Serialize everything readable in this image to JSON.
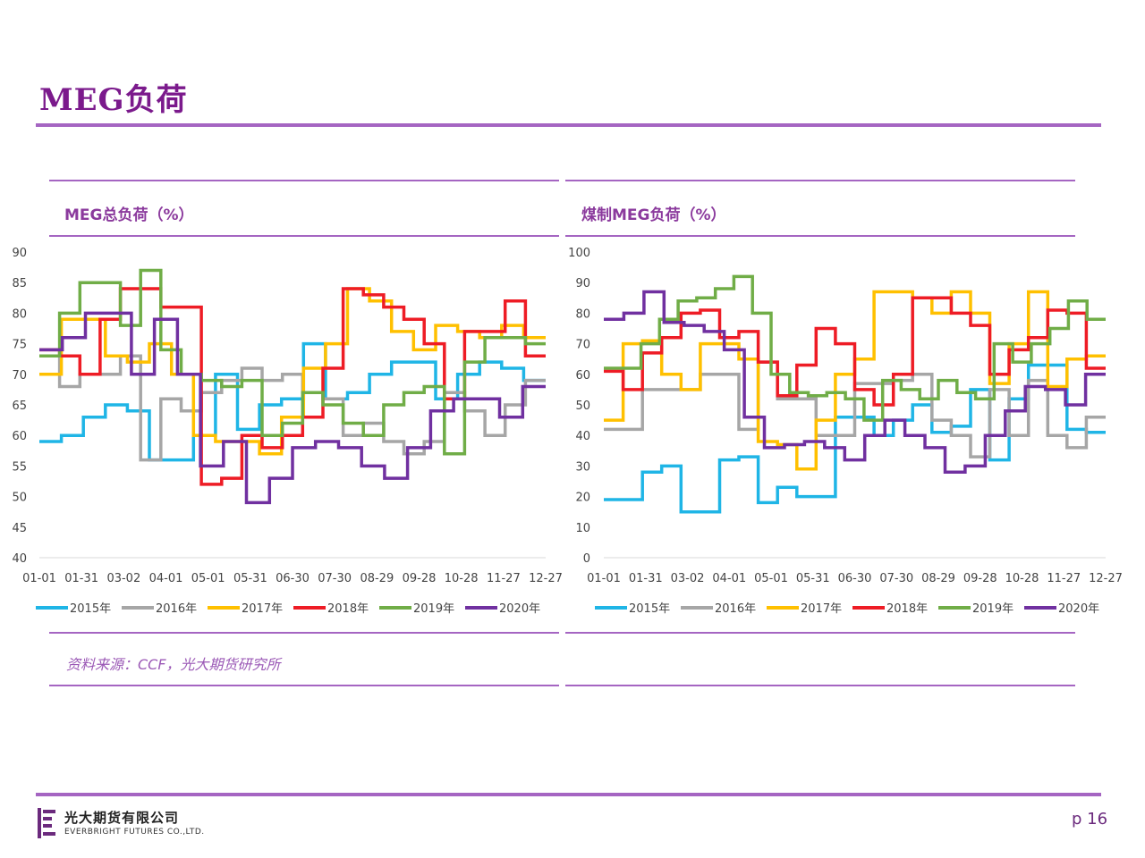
{
  "page": {
    "title": "MEG负荷",
    "source": "资料来源：CCF，光大期货研究所",
    "company_cn": "光大期货有限公司",
    "company_en": "EVERBRIGHT FUTURES CO.,LTD.",
    "page_number": "p 16",
    "accent_color": "#7b1a8c"
  },
  "chart_data": [
    {
      "type": "line",
      "title": "MEG总负荷（%）",
      "x_ticks": [
        "01-01",
        "01-31",
        "03-02",
        "04-01",
        "05-01",
        "05-31",
        "06-30",
        "07-30",
        "08-29",
        "09-28",
        "10-28",
        "11-27",
        "12-27"
      ],
      "ylim": [
        40,
        90
      ],
      "y_ticks": [
        40,
        45,
        50,
        55,
        60,
        65,
        70,
        75,
        80,
        85,
        90
      ],
      "legend_position": "bottom",
      "grid": false,
      "series": [
        {
          "name": "2015年",
          "color": "#1fb5e6",
          "values": [
            59,
            60,
            63,
            65,
            64,
            56,
            56,
            60,
            70,
            61,
            65,
            66,
            75,
            66,
            67,
            70,
            72,
            72,
            66,
            70,
            72,
            71,
            69
          ]
        },
        {
          "name": "2016年",
          "color": "#a6a6a6",
          "values": [
            73,
            68,
            70,
            70,
            73,
            56,
            66,
            64,
            67,
            69,
            71,
            69,
            70,
            67,
            66,
            60,
            62,
            59,
            57,
            59,
            67,
            64,
            60,
            65,
            69
          ]
        },
        {
          "name": "2017年",
          "color": "#ffc000",
          "values": [
            70,
            79,
            79,
            73,
            72,
            75,
            70,
            60,
            59,
            59,
            57,
            63,
            71,
            75,
            84,
            82,
            77,
            74,
            78,
            77,
            76,
            78,
            76
          ]
        },
        {
          "name": "2018年",
          "color": "#ee1c25",
          "values": [
            74,
            73,
            70,
            79,
            84,
            84,
            81,
            81,
            52,
            53,
            60,
            58,
            60,
            63,
            71,
            84,
            83,
            81,
            79,
            75,
            66,
            77,
            77,
            82,
            73
          ]
        },
        {
          "name": "2019年",
          "color": "#70ad47",
          "values": [
            73,
            80,
            85,
            85,
            78,
            87,
            74,
            70,
            69,
            68,
            69,
            60,
            62,
            67,
            65,
            62,
            60,
            65,
            67,
            68,
            57,
            72,
            76,
            76,
            75
          ]
        },
        {
          "name": "2020年",
          "color": "#7030a0",
          "values": [
            74,
            76,
            80,
            80,
            70,
            79,
            70,
            55,
            59,
            49,
            53,
            58,
            59,
            58,
            55,
            53,
            58,
            64,
            66,
            66,
            63,
            68
          ]
        }
      ]
    },
    {
      "type": "line",
      "title": "煤制MEG负荷（%）",
      "x_ticks": [
        "01-01",
        "01-31",
        "03-02",
        "04-01",
        "05-01",
        "05-31",
        "06-30",
        "07-30",
        "08-29",
        "09-28",
        "10-28",
        "11-27",
        "12-27"
      ],
      "ylim": [
        0,
        100
      ],
      "y_ticks": [
        0,
        10,
        20,
        30,
        40,
        50,
        60,
        70,
        80,
        90,
        100
      ],
      "legend_position": "bottom",
      "grid": false,
      "series": [
        {
          "name": "2015年",
          "color": "#1fb5e6",
          "values": [
            19,
            19,
            28,
            30,
            15,
            15,
            32,
            33,
            18,
            23,
            20,
            20,
            46,
            46,
            40,
            45,
            50,
            41,
            43,
            55,
            32,
            52,
            63,
            63,
            42,
            41
          ]
        },
        {
          "name": "2016年",
          "color": "#a6a6a6",
          "values": [
            42,
            42,
            55,
            55,
            55,
            60,
            60,
            42,
            64,
            52,
            52,
            40,
            40,
            57,
            57,
            58,
            60,
            45,
            40,
            33,
            55,
            40,
            58,
            40,
            36,
            46
          ]
        },
        {
          "name": "2017年",
          "color": "#ffc000",
          "values": [
            45,
            70,
            71,
            60,
            55,
            70,
            70,
            65,
            38,
            37,
            29,
            45,
            60,
            65,
            87,
            87,
            85,
            80,
            87,
            80,
            57,
            70,
            87,
            56,
            65,
            66
          ]
        },
        {
          "name": "2018年",
          "color": "#ee1c25",
          "values": [
            61,
            55,
            67,
            72,
            80,
            81,
            72,
            74,
            64,
            53,
            63,
            75,
            70,
            55,
            50,
            60,
            85,
            85,
            80,
            76,
            60,
            68,
            72,
            81,
            80,
            62
          ]
        },
        {
          "name": "2019年",
          "color": "#70ad47",
          "values": [
            62,
            62,
            70,
            78,
            84,
            85,
            88,
            92,
            80,
            60,
            54,
            53,
            54,
            52,
            45,
            58,
            55,
            52,
            58,
            54,
            52,
            70,
            64,
            70,
            75,
            84,
            78
          ]
        },
        {
          "name": "2020年",
          "color": "#7030a0",
          "values": [
            78,
            80,
            87,
            77,
            76,
            74,
            68,
            46,
            36,
            37,
            38,
            36,
            32,
            40,
            45,
            40,
            36,
            28,
            30,
            40,
            48,
            56,
            55,
            50,
            60
          ]
        }
      ]
    }
  ]
}
